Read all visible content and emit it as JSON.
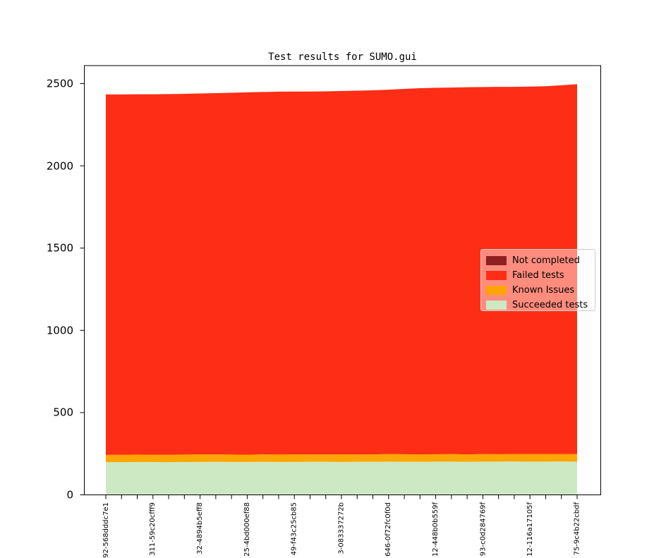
{
  "chart_data": {
    "type": "area",
    "stacked": true,
    "title": "Test results for SUMO.gui",
    "n_points": 31,
    "x_tick_labels": [
      "92-568dddc7e1",
      "311-59c20cfff9",
      "32-4894b5eff8",
      "25-4bd000ef88",
      "49-f43c25cb85",
      "3-083337272b",
      "646-0f72fc0f0d",
      "12-448b0b559f",
      "93-c0d284769f",
      "12-116a17105f",
      "75-9c4b22cbdf"
    ],
    "x_label_every": 3,
    "y_ticks": [
      0,
      500,
      1000,
      1500,
      2000,
      2500
    ],
    "ylim": [
      0,
      2610
    ],
    "grid": false,
    "legend_position": "center right",
    "background_color": "#ffffff",
    "series_bottom_to_top": [
      {
        "name": "Succeeded tests",
        "color": "#cde9c3",
        "values": [
          199,
          199,
          200,
          200,
          199,
          200,
          200,
          201,
          200,
          200,
          201,
          200,
          200,
          201,
          201,
          200,
          201,
          201,
          202,
          201,
          201,
          202,
          202,
          201,
          202,
          202,
          203,
          202,
          202,
          203,
          202
        ]
      },
      {
        "name": "Known Issues",
        "color": "#ffa502",
        "values": [
          44,
          45,
          45,
          44,
          45,
          45,
          46,
          45,
          45,
          44,
          45,
          45,
          46,
          45,
          45,
          46,
          45,
          45,
          46,
          46,
          45,
          45,
          46,
          45,
          46,
          45,
          45,
          46,
          46,
          45,
          46
        ]
      },
      {
        "name": "Failed tests",
        "color": "#fd2e15",
        "values": [
          2191,
          2190,
          2190,
          2191,
          2192,
          2193,
          2194,
          2196,
          2199,
          2203,
          2203,
          2206,
          2206,
          2206,
          2207,
          2209,
          2211,
          2213,
          2215,
          2221,
          2226,
          2227,
          2228,
          2232,
          2231,
          2233,
          2232,
          2234,
          2236,
          2242,
          2248
        ]
      },
      {
        "name": "Not completed",
        "color": "#8f2020",
        "values": [
          0,
          0,
          0,
          0,
          0,
          0,
          0,
          0,
          0,
          0,
          0,
          0,
          0,
          0,
          0,
          0,
          0,
          0,
          0,
          0,
          0,
          0,
          0,
          0,
          0,
          0,
          0,
          0,
          0,
          0,
          0
        ]
      }
    ],
    "legend_entries_top_to_bottom": [
      "Not completed",
      "Failed tests",
      "Known Issues",
      "Succeeded tests"
    ]
  }
}
